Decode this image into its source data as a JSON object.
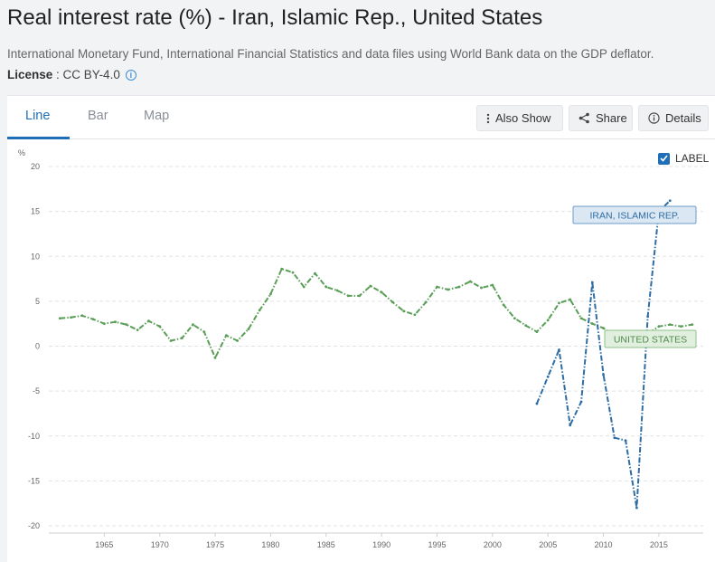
{
  "header": {
    "title": "Real interest rate (%) - Iran, Islamic Rep., United States",
    "source": "International Monetary Fund, International Financial Statistics and data files using World Bank data on the GDP deflator.",
    "license_label": "License",
    "license_sep": " : ",
    "license_value": "CC BY-4.0",
    "info_icon": "info-icon"
  },
  "tabs": [
    {
      "label": "Line",
      "active": true
    },
    {
      "label": "Bar",
      "active": false
    },
    {
      "label": "Map",
      "active": false
    }
  ],
  "toolbar": {
    "also_show": {
      "label": "Also Show",
      "icon": "vertical-dots-icon"
    },
    "share": {
      "label": "Share",
      "icon": "share-icon"
    },
    "details": {
      "label": "Details",
      "icon": "info-icon"
    }
  },
  "label_toggle": {
    "label": "LABEL",
    "checked": true
  },
  "colors": {
    "accent": "#1f6fb8",
    "iran": "#2e6ca4",
    "us": "#5a9e57"
  },
  "chart_data": {
    "type": "line",
    "yunit": "%",
    "ylim": [
      -20,
      20
    ],
    "yticks": [
      20,
      15,
      10,
      5,
      0,
      -5,
      -10,
      -15,
      -20
    ],
    "xlim": [
      1960,
      2019
    ],
    "xticks": [
      1965,
      1970,
      1975,
      1980,
      1985,
      1990,
      1995,
      2000,
      2005,
      2010,
      2015
    ],
    "grid": true,
    "series": [
      {
        "name": "UNITED STATES",
        "color": "#5a9e57",
        "x": [
          1961,
          1962,
          1963,
          1964,
          1965,
          1966,
          1967,
          1968,
          1969,
          1970,
          1971,
          1972,
          1973,
          1974,
          1975,
          1976,
          1977,
          1978,
          1979,
          1980,
          1981,
          1982,
          1983,
          1984,
          1985,
          1986,
          1987,
          1988,
          1989,
          1990,
          1991,
          1992,
          1993,
          1994,
          1995,
          1996,
          1997,
          1998,
          1999,
          2000,
          2001,
          2002,
          2003,
          2004,
          2005,
          2006,
          2007,
          2008,
          2009,
          2010,
          2011,
          2012,
          2013,
          2014,
          2015,
          2016,
          2017,
          2018
        ],
        "values": [
          3.1,
          3.2,
          3.4,
          3.0,
          2.5,
          2.7,
          2.4,
          1.8,
          2.8,
          2.2,
          0.6,
          0.9,
          2.4,
          1.6,
          -1.3,
          1.2,
          0.6,
          1.9,
          4.0,
          5.8,
          8.6,
          8.2,
          6.6,
          8.1,
          6.6,
          6.2,
          5.6,
          5.6,
          6.7,
          6.0,
          4.9,
          3.9,
          3.5,
          4.9,
          6.6,
          6.3,
          6.6,
          7.2,
          6.5,
          6.8,
          4.6,
          3.1,
          2.3,
          1.6,
          2.9,
          4.8,
          5.2,
          3.1,
          2.5,
          2.0,
          1.2,
          1.4,
          1.6,
          1.4,
          2.2,
          2.4,
          2.2,
          2.4
        ]
      },
      {
        "name": "IRAN, ISLAMIC REP.",
        "color": "#2e6ca4",
        "x": [
          2004,
          2005,
          2006,
          2007,
          2008,
          2009,
          2010,
          2011,
          2012,
          2013,
          2014,
          2015,
          2016
        ],
        "values": [
          -6.4,
          -3.4,
          -0.4,
          -8.8,
          -6.2,
          7.1,
          -3.2,
          -10.2,
          -10.5,
          -18.0,
          3.3,
          15.0,
          16.2
        ]
      }
    ]
  }
}
